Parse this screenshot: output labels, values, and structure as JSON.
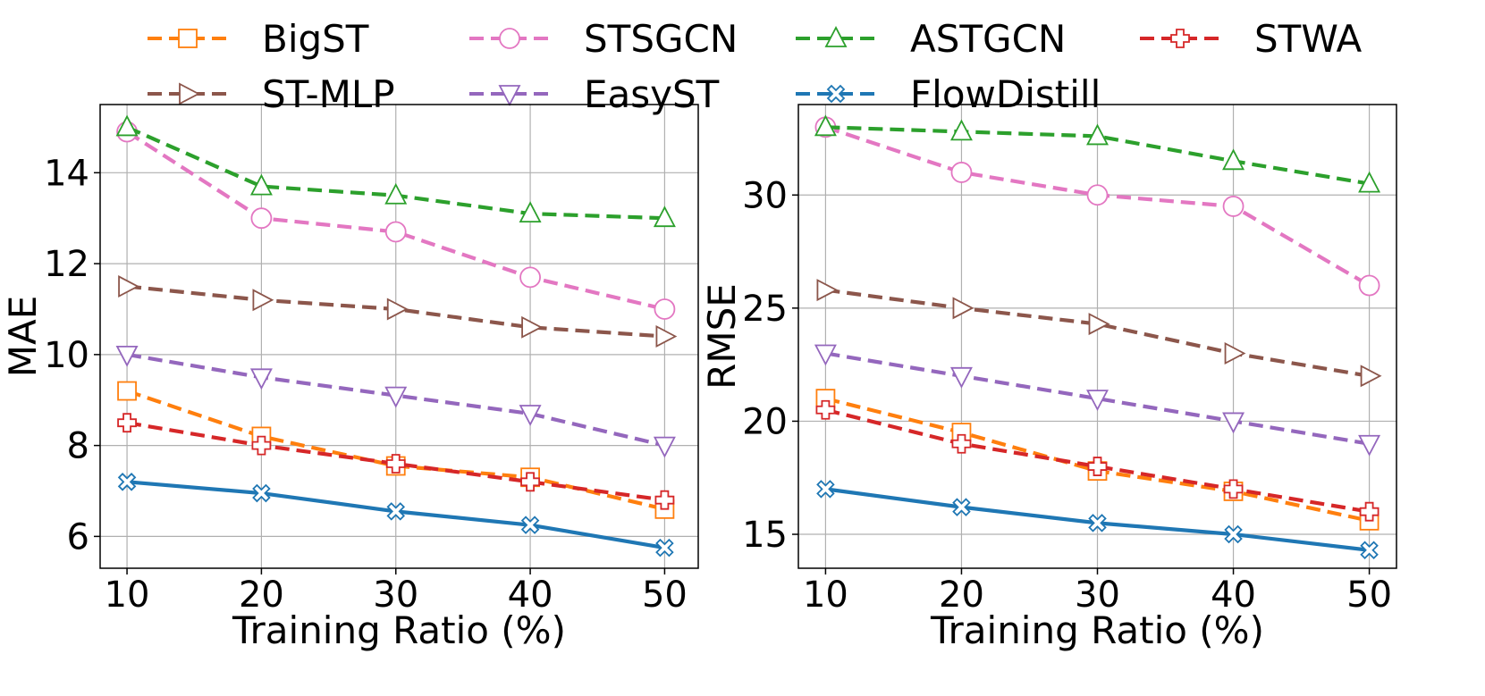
{
  "chart_data": {
    "type": "line",
    "legend": {
      "placement": "top",
      "entries": [
        "BigST",
        "STSGCN",
        "ASTGCN",
        "STWA",
        "ST-MLP",
        "EasyST",
        "FlowDistill"
      ]
    },
    "series_styles": [
      {
        "name": "BigST",
        "color": "#ff7f0e",
        "marker": "square"
      },
      {
        "name": "STSGCN",
        "color": "#e377c2",
        "marker": "circle"
      },
      {
        "name": "ASTGCN",
        "color": "#2ca02c",
        "marker": "triangle-up"
      },
      {
        "name": "STWA",
        "color": "#d62728",
        "marker": "plus"
      },
      {
        "name": "ST-MLP",
        "color": "#8c564b",
        "marker": "triangle-right"
      },
      {
        "name": "EasyST",
        "color": "#9467bd",
        "marker": "triangle-down"
      },
      {
        "name": "FlowDistill",
        "color": "#1f77b4",
        "marker": "x"
      }
    ],
    "panels": [
      {
        "id": "mae",
        "xlabel": "Training Ratio (%)",
        "ylabel": "MAE",
        "x": [
          10,
          20,
          30,
          40,
          50
        ],
        "xticks": [
          "10",
          "20",
          "30",
          "40",
          "50"
        ],
        "xlim": [
          8,
          52.5
        ],
        "yticks": [
          "6",
          "8",
          "10",
          "12",
          "14"
        ],
        "ytick_values": [
          6,
          8,
          10,
          12,
          14
        ],
        "ylim": [
          5.3,
          15.5
        ],
        "grid": true,
        "series": [
          {
            "name": "BigST",
            "values": [
              9.2,
              8.2,
              7.55,
              7.3,
              6.6
            ]
          },
          {
            "name": "STSGCN",
            "values": [
              14.9,
              13.0,
              12.7,
              11.7,
              11.0
            ]
          },
          {
            "name": "ASTGCN",
            "values": [
              15.0,
              13.7,
              13.5,
              13.1,
              13.0
            ]
          },
          {
            "name": "STWA",
            "values": [
              8.5,
              8.0,
              7.6,
              7.2,
              6.8
            ]
          },
          {
            "name": "ST-MLP",
            "values": [
              11.5,
              11.2,
              11.0,
              10.6,
              10.4
            ]
          },
          {
            "name": "EasyST",
            "values": [
              10.0,
              9.5,
              9.1,
              8.7,
              8.0
            ]
          },
          {
            "name": "FlowDistill",
            "values": [
              7.2,
              6.95,
              6.55,
              6.25,
              5.75
            ]
          }
        ]
      },
      {
        "id": "rmse",
        "xlabel": "Training Ratio (%)",
        "ylabel": "RMSE",
        "x": [
          10,
          20,
          30,
          40,
          50
        ],
        "xticks": [
          "10",
          "20",
          "30",
          "40",
          "50"
        ],
        "xlim": [
          8,
          52
        ],
        "yticks": [
          "15",
          "20",
          "25",
          "30"
        ],
        "ytick_values": [
          15,
          20,
          25,
          30
        ],
        "ylim": [
          13.5,
          34.0
        ],
        "grid": true,
        "series": [
          {
            "name": "BigST",
            "values": [
              21.0,
              19.5,
              17.8,
              16.9,
              15.6
            ]
          },
          {
            "name": "STSGCN",
            "values": [
              33.0,
              31.0,
              30.0,
              29.5,
              26.0
            ]
          },
          {
            "name": "ASTGCN",
            "values": [
              33.0,
              32.8,
              32.6,
              31.5,
              30.5
            ]
          },
          {
            "name": "STWA",
            "values": [
              20.5,
              19.0,
              18.0,
              17.0,
              16.0
            ]
          },
          {
            "name": "ST-MLP",
            "values": [
              25.8,
              25.0,
              24.3,
              23.0,
              22.0
            ]
          },
          {
            "name": "EasyST",
            "values": [
              23.0,
              22.0,
              21.0,
              20.0,
              19.0
            ]
          },
          {
            "name": "FlowDistill",
            "values": [
              17.0,
              16.2,
              15.5,
              15.0,
              14.3
            ]
          }
        ]
      }
    ]
  }
}
